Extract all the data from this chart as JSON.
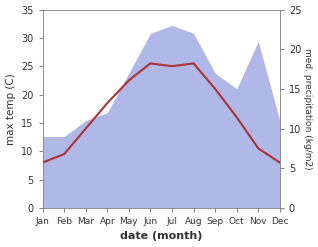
{
  "months": [
    "Jan",
    "Feb",
    "Mar",
    "Apr",
    "May",
    "Jun",
    "Jul",
    "Aug",
    "Sep",
    "Oct",
    "Nov",
    "Dec"
  ],
  "month_indices": [
    0,
    1,
    2,
    3,
    4,
    5,
    6,
    7,
    8,
    9,
    10,
    11
  ],
  "temperature": [
    8.0,
    9.5,
    14.0,
    18.5,
    22.5,
    25.5,
    25.0,
    25.5,
    21.0,
    16.0,
    10.5,
    8.0
  ],
  "precipitation": [
    9,
    9,
    11,
    12,
    17,
    22,
    23,
    22,
    17,
    15,
    21,
    11
  ],
  "temp_ylim": [
    0,
    35
  ],
  "precip_ylim": [
    0,
    25
  ],
  "temp_color": "#aa3333",
  "precip_fill_color": "#b0b8e8",
  "xlabel": "date (month)",
  "ylabel_left": "max temp (C)",
  "ylabel_right": "med. precipitation (kg/m2)",
  "left_yticks": [
    0,
    5,
    10,
    15,
    20,
    25,
    30,
    35
  ],
  "right_yticks": [
    0,
    5,
    10,
    15,
    20,
    25
  ],
  "bg_color": "#ffffff"
}
